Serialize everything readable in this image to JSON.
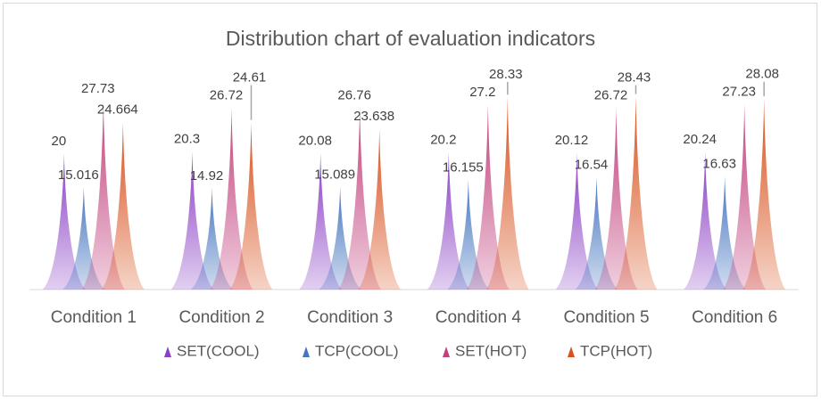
{
  "chart_data": {
    "type": "peak",
    "title": "Distribution chart of evaluation indicators",
    "categories": [
      "Condition 1",
      "Condition 2",
      "Condition 3",
      "Condition 4",
      "Condition 5",
      "Condition 6"
    ],
    "ylim": [
      0,
      40
    ],
    "legend": "bottom",
    "series": [
      {
        "name": "SET(COOL)",
        "color": "#8a3fc4",
        "values": [
          20,
          20.3,
          20.08,
          20.2,
          20.12,
          20.24
        ]
      },
      {
        "name": "TCP(COOL)",
        "color": "#4676c0",
        "values": [
          15.016,
          14.92,
          15.089,
          16.155,
          16.54,
          16.63
        ]
      },
      {
        "name": "SET(HOT)",
        "color": "#c2407c",
        "values": [
          27.73,
          26.72,
          26.76,
          27.2,
          26.72,
          27.23
        ]
      },
      {
        "name": "TCP(HOT)",
        "color": "#d8501c",
        "values": [
          24.664,
          24.61,
          23.638,
          28.33,
          28.43,
          28.08
        ]
      }
    ]
  }
}
